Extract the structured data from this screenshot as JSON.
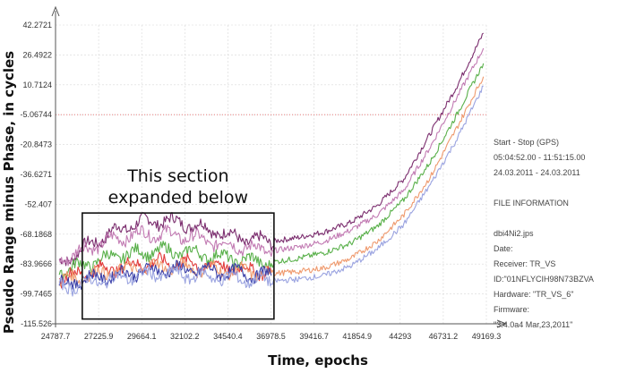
{
  "chart_data": {
    "type": "line",
    "xlabel": "Time, epochs",
    "ylabel": "Pseudo Range minus Phase, in cycles",
    "x_ticks": [
      24787.7,
      27225.9,
      29664.1,
      32102.2,
      34540.4,
      36978.5,
      39416.7,
      41854.9,
      44293,
      46731.2,
      49169.3
    ],
    "y_ticks": [
      42.2721,
      26.4922,
      10.7124,
      -5.06744,
      -20.8473,
      -36.6271,
      -52.407,
      -68.1868,
      -83.9666,
      -99.7465,
      -115.526
    ],
    "x_tick_labels": [
      "24787.7",
      "27225.9",
      "29664.1",
      "32102.2",
      "34540.4",
      "36978.5",
      "39416.7",
      "41854.9",
      "44293",
      "46731.2",
      "49169.3"
    ],
    "y_tick_labels": [
      "42.2721",
      "26.4922",
      "10.7124",
      "-5.06744",
      "-20.8473",
      "-36.6271",
      "-52.407",
      "-68.1868",
      "-83.9666",
      "-99.7465",
      "-115.526"
    ],
    "xlim": [
      24787.7,
      49169.3
    ],
    "ylim": [
      -115.526,
      42.2721
    ],
    "grid": true,
    "reference_line_y": -5.06744,
    "annotation": {
      "text_lines": [
        "This section",
        "expanded below"
      ],
      "box_x": [
        26300,
        37150
      ],
      "box_y": [
        -113,
        -57
      ]
    },
    "series": [
      {
        "color": "#7b2d6e",
        "x": [
          25000,
          26500,
          28000,
          29500,
          31000,
          32500,
          34000,
          35500,
          37000,
          38500,
          40000,
          41500,
          43000,
          44500,
          46000,
          47500,
          49000
        ],
        "y": [
          -84,
          -75,
          -67,
          -62,
          -61,
          -63,
          -67,
          -71,
          -72,
          -70,
          -67,
          -62,
          -53,
          -39,
          -15,
          10,
          38
        ]
      },
      {
        "color": "#c27bb3",
        "x": [
          25000,
          26500,
          28000,
          29500,
          31000,
          32500,
          34000,
          35500,
          37000,
          38500,
          40000,
          41500,
          43000,
          44500,
          46000,
          47500,
          49000
        ],
        "y": [
          -82,
          -76,
          -71,
          -68,
          -68,
          -70,
          -73,
          -75,
          -77,
          -75,
          -72,
          -66,
          -58,
          -45,
          -22,
          4,
          30
        ]
      },
      {
        "color": "#59b04a",
        "x": [
          25000,
          26500,
          28000,
          29500,
          31000,
          32500,
          34000,
          35500,
          37000,
          38500,
          40000,
          41500,
          43000,
          44500,
          46000,
          47500,
          49000
        ],
        "y": [
          -88,
          -84,
          -80,
          -78,
          -77,
          -78,
          -80,
          -82,
          -83,
          -81,
          -78,
          -73,
          -64,
          -50,
          -30,
          -5,
          22
        ]
      },
      {
        "color": "#e13a3a",
        "x": [
          25000,
          26500,
          28000,
          29500,
          31000,
          32500,
          34000,
          35500,
          37000
        ],
        "y": [
          -92,
          -88,
          -86,
          -84,
          -83,
          -84,
          -85,
          -87,
          -88
        ]
      },
      {
        "color": "#ef9a6e",
        "x": [
          25000,
          26500,
          28000,
          29500,
          31000,
          32500,
          34000,
          35500,
          37000,
          38500,
          40000,
          41500,
          43000,
          44500,
          46000,
          47500,
          49000
        ],
        "y": [
          -93,
          -90,
          -88,
          -86,
          -85,
          -86,
          -87,
          -88,
          -89,
          -88,
          -86,
          -81,
          -72,
          -58,
          -38,
          -12,
          15
        ]
      },
      {
        "color": "#3a3fa8",
        "x": [
          25000,
          26500,
          28000,
          29500,
          31000,
          32500,
          34000,
          35500,
          37000
        ],
        "y": [
          -95,
          -92,
          -90,
          -88,
          -87,
          -87,
          -88,
          -89,
          -90
        ]
      },
      {
        "color": "#9aa3e0",
        "x": [
          25000,
          26500,
          28000,
          29500,
          31000,
          32500,
          34000,
          35500,
          37000,
          38500,
          40000,
          41500,
          43000,
          44500,
          46000,
          47500,
          49000
        ],
        "y": [
          -97,
          -94,
          -92,
          -90,
          -89,
          -90,
          -91,
          -92,
          -93,
          -92,
          -90,
          -85,
          -76,
          -63,
          -42,
          -18,
          10
        ]
      }
    ]
  },
  "info_panel": {
    "lines": [
      "Start  -  Stop  (GPS)",
      "05:04:52.00 - 11:51:15.00",
      "24.03.2011 - 24.03.2011",
      "",
      "FILE INFORMATION",
      "",
      "dbi4Ni2.jps",
      "Date:",
      "Receiver: TR_VS",
      "ID:\"01NFLYCIH98N73BZVA",
      "Hardware: \"TR_VS_6\"",
      "Firmware:",
      "\"3.4.0a4 Mar,23,2011\""
    ]
  }
}
